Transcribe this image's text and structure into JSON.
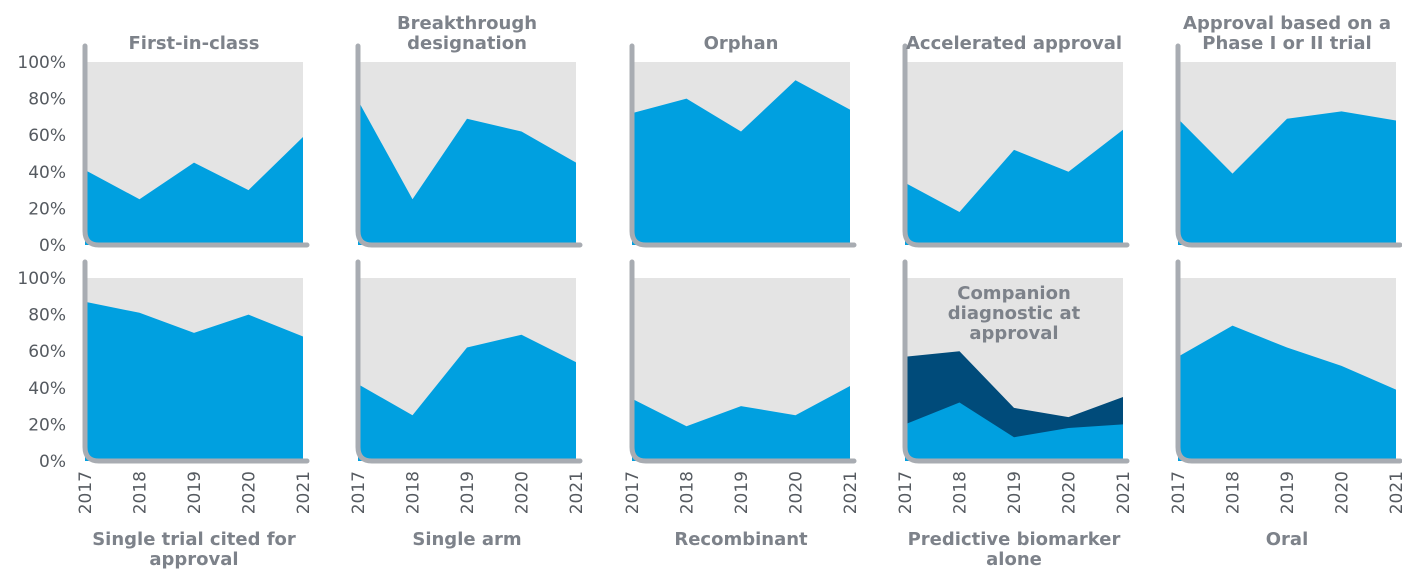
{
  "chart_data": {
    "type": "area",
    "categories": [
      "2017",
      "2018",
      "2019",
      "2020",
      "2021"
    ],
    "ylim": [
      0,
      100
    ],
    "yticks": [
      {
        "value": 0,
        "label": "0%"
      },
      {
        "value": 20,
        "label": "20%"
      },
      {
        "value": 40,
        "label": "40%"
      },
      {
        "value": 60,
        "label": "60%"
      },
      {
        "value": 80,
        "label": "80%"
      },
      {
        "value": 100,
        "label": "100%"
      }
    ],
    "background": "#e4e4e4",
    "panels": [
      {
        "title": "First-in-class",
        "series": [
          {
            "color": "#00a0e0",
            "values": [
              41,
              25,
              45,
              30,
              59
            ]
          }
        ]
      },
      {
        "title": "Breakthrough designation",
        "series": [
          {
            "color": "#00a0e0",
            "values": [
              79,
              25,
              69,
              62,
              45
            ]
          }
        ]
      },
      {
        "title": "Orphan",
        "series": [
          {
            "color": "#00a0e0",
            "values": [
              72,
              80,
              62,
              90,
              74
            ]
          }
        ]
      },
      {
        "title": "Accelerated approval",
        "series": [
          {
            "color": "#00a0e0",
            "values": [
              34,
              18,
              52,
              40,
              63
            ]
          }
        ]
      },
      {
        "title": "Approval based on a Phase I or II trial",
        "series": [
          {
            "color": "#00a0e0",
            "values": [
              69,
              39,
              69,
              73,
              68
            ]
          }
        ]
      },
      {
        "title": "Single trial cited for approval",
        "series": [
          {
            "color": "#00a0e0",
            "values": [
              87,
              81,
              70,
              80,
              68
            ]
          }
        ]
      },
      {
        "title": "Single arm",
        "series": [
          {
            "color": "#00a0e0",
            "values": [
              42,
              25,
              62,
              69,
              54
            ]
          }
        ]
      },
      {
        "title": "Recombinant",
        "series": [
          {
            "color": "#00a0e0",
            "values": [
              34,
              19,
              30,
              25,
              41
            ]
          }
        ]
      },
      {
        "series": [
          {
            "name": "Companion diagnostic at approval",
            "color": "#004b7a",
            "values": [
              57,
              60,
              29,
              24,
              35
            ]
          },
          {
            "name": "Predictive biomarker alone",
            "color": "#00a0e0",
            "values": [
              20,
              32,
              13,
              18,
              20
            ]
          }
        ]
      },
      {
        "title": "Oral",
        "series": [
          {
            "color": "#00a0e0",
            "values": [
              57,
              74,
              62,
              52,
              39
            ]
          }
        ]
      }
    ]
  }
}
